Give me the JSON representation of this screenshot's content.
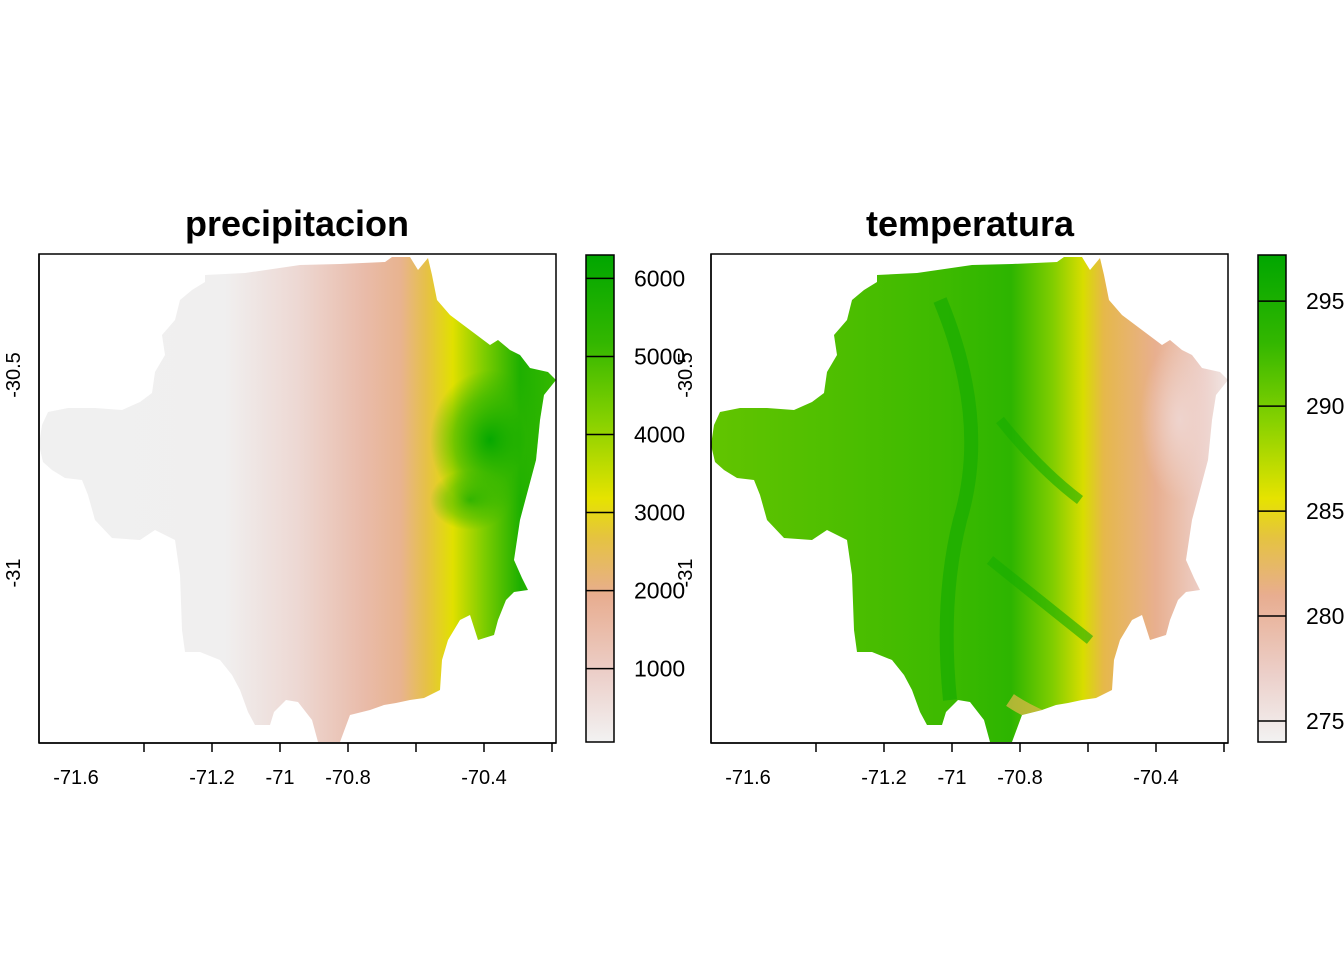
{
  "chart_data": [
    {
      "type": "heatmap",
      "title": "precipitacion",
      "xlabel": "",
      "ylabel": "",
      "x_ticks": [
        -71.6,
        -71.2,
        -71,
        -70.8,
        -70.4
      ],
      "x_tick_labels": [
        "-71.6",
        "-71.2",
        "-71",
        "-70.8",
        "-70.4"
      ],
      "y_ticks": [
        -30.5,
        -31
      ],
      "y_tick_labels": [
        "-30.5",
        "-31"
      ],
      "xlim": [
        -71.72,
        -70.19
      ],
      "ylim": [
        -31.43,
        -30.2
      ],
      "legend": {
        "position": "right",
        "range": [
          60,
          6300
        ],
        "ticks": [
          1000,
          2000,
          3000,
          4000,
          5000,
          6000
        ],
        "tick_labels": [
          "1000",
          "2000",
          "3000",
          "4000",
          "5000",
          "6000"
        ],
        "colors": [
          "#f2f2f2",
          "#eccfc9",
          "#e8ad90",
          "#e5c340",
          "#e6e300",
          "#86d100",
          "#33b700",
          "#00a600"
        ]
      },
      "pattern": "low values across the west, increasing eastward toward the Andes; highest values in the east-central highlands",
      "grid": false
    },
    {
      "type": "heatmap",
      "title": "temperatura",
      "xlabel": "",
      "ylabel": "",
      "x_ticks": [
        -71.6,
        -71.2,
        -71,
        -70.8,
        -70.4
      ],
      "x_tick_labels": [
        "-71.6",
        "-71.2",
        "-71",
        "-70.8",
        "-70.4"
      ],
      "y_ticks": [
        -30.5,
        -31
      ],
      "y_tick_labels": [
        "-30.5",
        "-31"
      ],
      "xlim": [
        -71.72,
        -70.19
      ],
      "ylim": [
        -31.43,
        -30.2
      ],
      "legend": {
        "position": "right",
        "range": [
          274,
          297.2
        ],
        "ticks": [
          275,
          280,
          285,
          290,
          295
        ],
        "tick_labels": [
          "275",
          "280",
          "285",
          "290",
          "295"
        ],
        "colors": [
          "#f2f2f2",
          "#eccfc9",
          "#e8ad90",
          "#e5c340",
          "#e6e300",
          "#86d100",
          "#33b700",
          "#00a600"
        ]
      },
      "pattern": "warm (green) across the west and in valleys, colder (tan to pink) toward the eastern Andes",
      "grid": false
    }
  ]
}
